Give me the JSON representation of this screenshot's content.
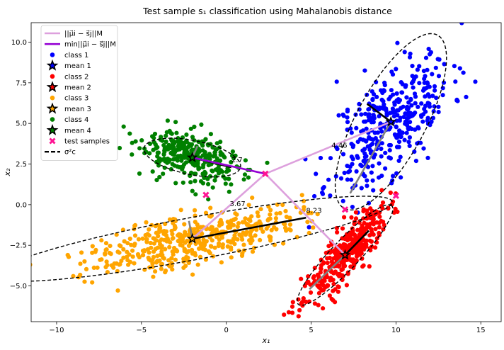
{
  "chart_data": {
    "type": "scatter",
    "title": "Test sample s₁ classification using Mahalanobis distance",
    "xlabel": "x₁",
    "ylabel": "x₂",
    "xlim": [
      -11.5,
      16.2
    ],
    "ylim": [
      -7.2,
      11.2
    ],
    "xticks": [
      -10,
      -5,
      0,
      5,
      10,
      15
    ],
    "yticks": [
      -5.0,
      -2.5,
      0.0,
      2.5,
      5.0,
      7.5,
      10.0
    ],
    "xtick_labels": [
      "−10",
      "−5",
      "0",
      "5",
      "10",
      "15"
    ],
    "ytick_labels": [
      "−5.0",
      "−2.5",
      "0.0",
      "2.5",
      "5.0",
      "7.5",
      "10.0"
    ],
    "grid": false,
    "legend_position": "upper-left",
    "classes": [
      {
        "name": "class 1",
        "mean_name": "mean 1",
        "color": "#0000ff",
        "mean": [
          9.7,
          5.1
        ],
        "cov": [
          [
            3.2,
            2.4
          ],
          [
            2.4,
            4.6
          ]
        ],
        "n": 380,
        "seed": 11
      },
      {
        "name": "class 2",
        "mean_name": "mean 2",
        "color": "#ff0000",
        "mean": [
          7.0,
          -3.1
        ],
        "cov": [
          [
            1.5,
            1.5
          ],
          [
            1.5,
            2.1
          ]
        ],
        "n": 380,
        "seed": 23
      },
      {
        "name": "class 3",
        "mean_name": "mean 3",
        "color": "#ffa500",
        "mean": [
          -2.0,
          -2.1
        ],
        "cov": [
          [
            9.5,
            1.9
          ],
          [
            1.9,
            1.0
          ]
        ],
        "n": 450,
        "seed": 37
      },
      {
        "name": "class 4",
        "mean_name": "mean 4",
        "color": "#008000",
        "mean": [
          -2.0,
          2.9
        ],
        "cov": [
          [
            2.6,
            -0.6
          ],
          [
            -0.6,
            0.75
          ]
        ],
        "n": 300,
        "seed": 53
      }
    ],
    "test_samples": {
      "name": "test samples",
      "color": "#ff1493",
      "points": [
        [
          2.3,
          1.9
        ],
        [
          -1.2,
          0.6
        ],
        [
          7.0,
          -0.3
        ],
        [
          10.0,
          0.55
        ]
      ]
    },
    "ellipse_name": "σ²c",
    "ellipses": [
      {
        "center": [
          9.7,
          5.1
        ],
        "semi_axes": [
          6.0,
          2.05
        ],
        "angle_deg": 63
      },
      {
        "center": [
          7.0,
          -3.1
        ],
        "semi_axes": [
          4.1,
          0.85
        ],
        "angle_deg": 48
      },
      {
        "center": [
          -2.0,
          -2.1
        ],
        "semi_axes": [
          12.0,
          1.3
        ],
        "angle_deg": 11
      },
      {
        "center": [
          -2.0,
          2.9
        ],
        "semi_axes": [
          2.9,
          1.05
        ],
        "angle_deg": -12
      }
    ],
    "distance_lines": {
      "name": "||μ⃗i − s⃗j||M",
      "color": "#dda0dd",
      "from": [
        2.3,
        1.9
      ],
      "to": [
        [
          9.7,
          5.1
        ],
        [
          7.0,
          -3.1
        ],
        [
          -2.0,
          -2.1
        ],
        [
          -2.0,
          2.9
        ]
      ]
    },
    "min_distance_line": {
      "name": "min||μ⃗i − s⃗j||M",
      "color": "#9400d3",
      "from": [
        2.3,
        1.9
      ],
      "to": [
        -2.0,
        2.9
      ]
    },
    "black_segments": [
      {
        "from": [
          -2.0,
          -2.1
        ],
        "to": [
          4.7,
          -0.8
        ]
      },
      {
        "from": [
          9.7,
          5.1
        ],
        "to": [
          8.3,
          6.2
        ]
      },
      {
        "from": [
          -2.0,
          2.9
        ],
        "to": [
          0.3,
          2.3
        ]
      },
      {
        "from": [
          7.0,
          -3.1
        ],
        "to": [
          8.4,
          -1.6
        ]
      }
    ],
    "gray_segments": [
      {
        "from": [
          9.7,
          5.1
        ],
        "to": [
          7.3,
          0.7
        ]
      },
      {
        "from": [
          7.0,
          -3.1
        ],
        "to": [
          4.9,
          -5.2
        ]
      },
      {
        "from": [
          -2.0,
          -2.1
        ],
        "to": [
          -2.2,
          -1.0
        ]
      },
      {
        "from": [
          -2.0,
          2.9
        ],
        "to": [
          -1.7,
          3.6
        ]
      }
    ],
    "annotations": [
      {
        "text": "4.46",
        "x": 6.2,
        "y": 3.5
      },
      {
        "text": "3.67",
        "x": 0.2,
        "y": -0.1
      },
      {
        "text": "8.23",
        "x": 4.7,
        "y": -0.5
      },
      {
        "text": "2.7",
        "x": 0.3,
        "y": 2.6
      }
    ],
    "legend": [
      {
        "kind": "line",
        "label": "||μ⃗i − s⃗j||M",
        "color": "#dda0dd"
      },
      {
        "kind": "line",
        "label": "min||μ⃗i − s⃗j||M",
        "color": "#9400d3"
      },
      {
        "kind": "dot",
        "label": "class 1",
        "color": "#0000ff"
      },
      {
        "kind": "star",
        "label": "mean 1",
        "color": "#0000ff"
      },
      {
        "kind": "dot",
        "label": "class 2",
        "color": "#ff0000"
      },
      {
        "kind": "star",
        "label": "mean 2",
        "color": "#ff0000"
      },
      {
        "kind": "dot",
        "label": "class 3",
        "color": "#ffa500"
      },
      {
        "kind": "star",
        "label": "mean 3",
        "color": "#ffa500"
      },
      {
        "kind": "dot",
        "label": "class 4",
        "color": "#008000"
      },
      {
        "kind": "star",
        "label": "mean 4",
        "color": "#008000"
      },
      {
        "kind": "x",
        "label": "test samples",
        "color": "#ff1493"
      },
      {
        "kind": "dash",
        "label": "σ²c",
        "color": "#000000"
      }
    ]
  }
}
